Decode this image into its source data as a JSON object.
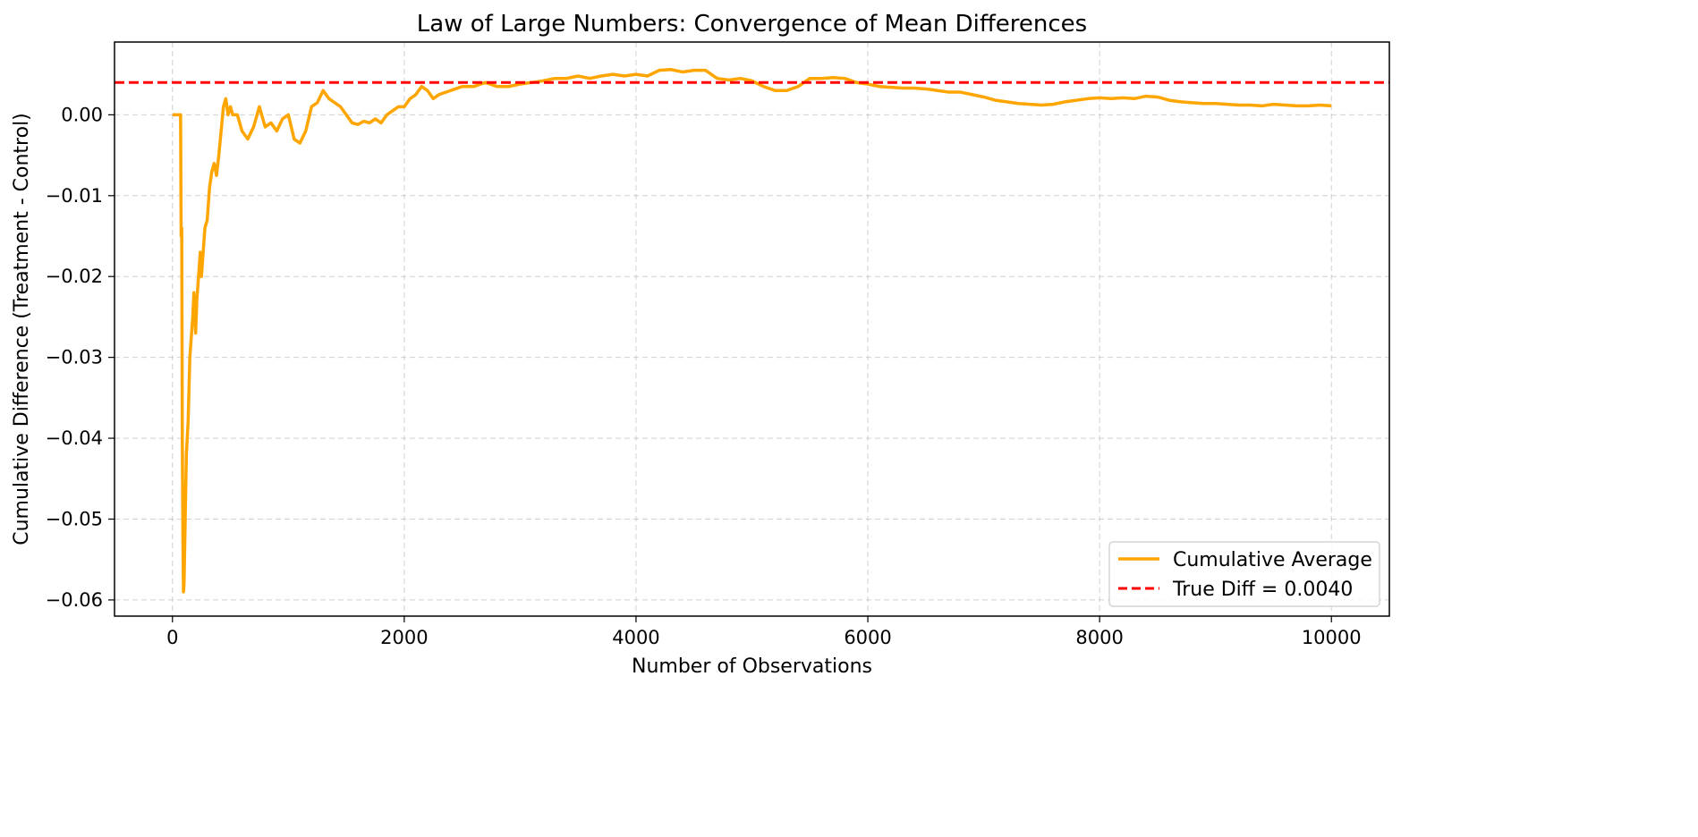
{
  "chart_data": {
    "type": "line",
    "title": "Law of Large Numbers: Convergence of Mean Differences",
    "xlabel": "Number of Observations",
    "ylabel": "Cumulative Difference (Treatment - Control)",
    "xlim": [
      -500,
      10500
    ],
    "ylim": [
      -0.062,
      0.009
    ],
    "xticks": [
      0,
      2000,
      4000,
      6000,
      8000,
      10000
    ],
    "xtick_labels": [
      "0",
      "2000",
      "4000",
      "6000",
      "8000",
      "10000"
    ],
    "yticks": [
      -0.06,
      -0.05,
      -0.04,
      -0.03,
      -0.02,
      -0.01,
      0.0
    ],
    "ytick_labels": [
      "−0.06",
      "−0.05",
      "−0.04",
      "−0.03",
      "−0.02",
      "−0.01",
      "0.00"
    ],
    "grid": true,
    "legend_position": "lower-right",
    "series": [
      {
        "name": "Cumulative Average",
        "color": "#ffa500",
        "style": "solid",
        "x": [
          1,
          40,
          70,
          75,
          80,
          85,
          90,
          95,
          100,
          110,
          120,
          135,
          150,
          165,
          175,
          185,
          200,
          210,
          220,
          230,
          240,
          250,
          260,
          270,
          280,
          300,
          320,
          340,
          360,
          380,
          400,
          420,
          440,
          460,
          480,
          500,
          520,
          560,
          600,
          650,
          700,
          750,
          800,
          850,
          900,
          950,
          1000,
          1050,
          1100,
          1150,
          1200,
          1250,
          1300,
          1350,
          1400,
          1450,
          1500,
          1550,
          1600,
          1650,
          1700,
          1750,
          1800,
          1850,
          1900,
          1950,
          2000,
          2050,
          2100,
          2150,
          2200,
          2250,
          2300,
          2400,
          2500,
          2600,
          2700,
          2800,
          2900,
          3000,
          3100,
          3200,
          3300,
          3400,
          3500,
          3600,
          3700,
          3800,
          3900,
          4000,
          4100,
          4200,
          4300,
          4400,
          4500,
          4600,
          4700,
          4800,
          4900,
          5000,
          5100,
          5200,
          5300,
          5400,
          5500,
          5600,
          5700,
          5800,
          5900,
          6000,
          6100,
          6200,
          6300,
          6400,
          6500,
          6600,
          6700,
          6800,
          6900,
          7000,
          7100,
          7200,
          7300,
          7400,
          7500,
          7600,
          7700,
          7800,
          7900,
          8000,
          8100,
          8200,
          8300,
          8400,
          8500,
          8600,
          8700,
          8800,
          8900,
          9000,
          9100,
          9200,
          9300,
          9400,
          9500,
          9600,
          9700,
          9800,
          9900,
          10000
        ],
        "y": [
          0.0,
          0.0,
          0.0,
          -0.015,
          -0.014,
          -0.04,
          -0.052,
          -0.059,
          -0.058,
          -0.05,
          -0.042,
          -0.038,
          -0.03,
          -0.027,
          -0.025,
          -0.022,
          -0.027,
          -0.023,
          -0.021,
          -0.019,
          -0.017,
          -0.02,
          -0.018,
          -0.016,
          -0.014,
          -0.013,
          -0.009,
          -0.007,
          -0.006,
          -0.0075,
          -0.005,
          -0.002,
          0.001,
          0.002,
          0.0,
          0.001,
          0.0,
          0.0,
          -0.002,
          -0.003,
          -0.0015,
          0.001,
          -0.0015,
          -0.001,
          -0.002,
          -0.0005,
          0.0,
          -0.003,
          -0.0035,
          -0.002,
          0.001,
          0.0015,
          0.003,
          0.002,
          0.0015,
          0.001,
          0.0,
          -0.001,
          -0.0012,
          -0.0008,
          -0.001,
          -0.0005,
          -0.001,
          0.0,
          0.0005,
          0.001,
          0.001,
          0.002,
          0.0025,
          0.0035,
          0.003,
          0.002,
          0.0025,
          0.003,
          0.0035,
          0.0035,
          0.004,
          0.0035,
          0.0035,
          0.0038,
          0.004,
          0.0042,
          0.0045,
          0.0045,
          0.0048,
          0.0045,
          0.0048,
          0.005,
          0.0048,
          0.005,
          0.0048,
          0.0055,
          0.0056,
          0.0053,
          0.0055,
          0.0055,
          0.0045,
          0.0043,
          0.0045,
          0.0042,
          0.0035,
          0.003,
          0.003,
          0.0035,
          0.0045,
          0.0045,
          0.0046,
          0.0045,
          0.004,
          0.0038,
          0.0035,
          0.0034,
          0.0033,
          0.0033,
          0.0032,
          0.003,
          0.0028,
          0.0028,
          0.0025,
          0.0022,
          0.0018,
          0.0016,
          0.0014,
          0.0013,
          0.0012,
          0.0013,
          0.0016,
          0.0018,
          0.002,
          0.0021,
          0.002,
          0.0021,
          0.002,
          0.0023,
          0.0022,
          0.0018,
          0.0016,
          0.0015,
          0.0014,
          0.0014,
          0.0013,
          0.0012,
          0.0012,
          0.0011,
          0.0013,
          0.0012,
          0.0011,
          0.0011,
          0.0012,
          0.0011
        ]
      },
      {
        "name": "True Diff = 0.0040",
        "color": "#ff0000",
        "style": "dashed",
        "y_constant": 0.004
      }
    ]
  }
}
